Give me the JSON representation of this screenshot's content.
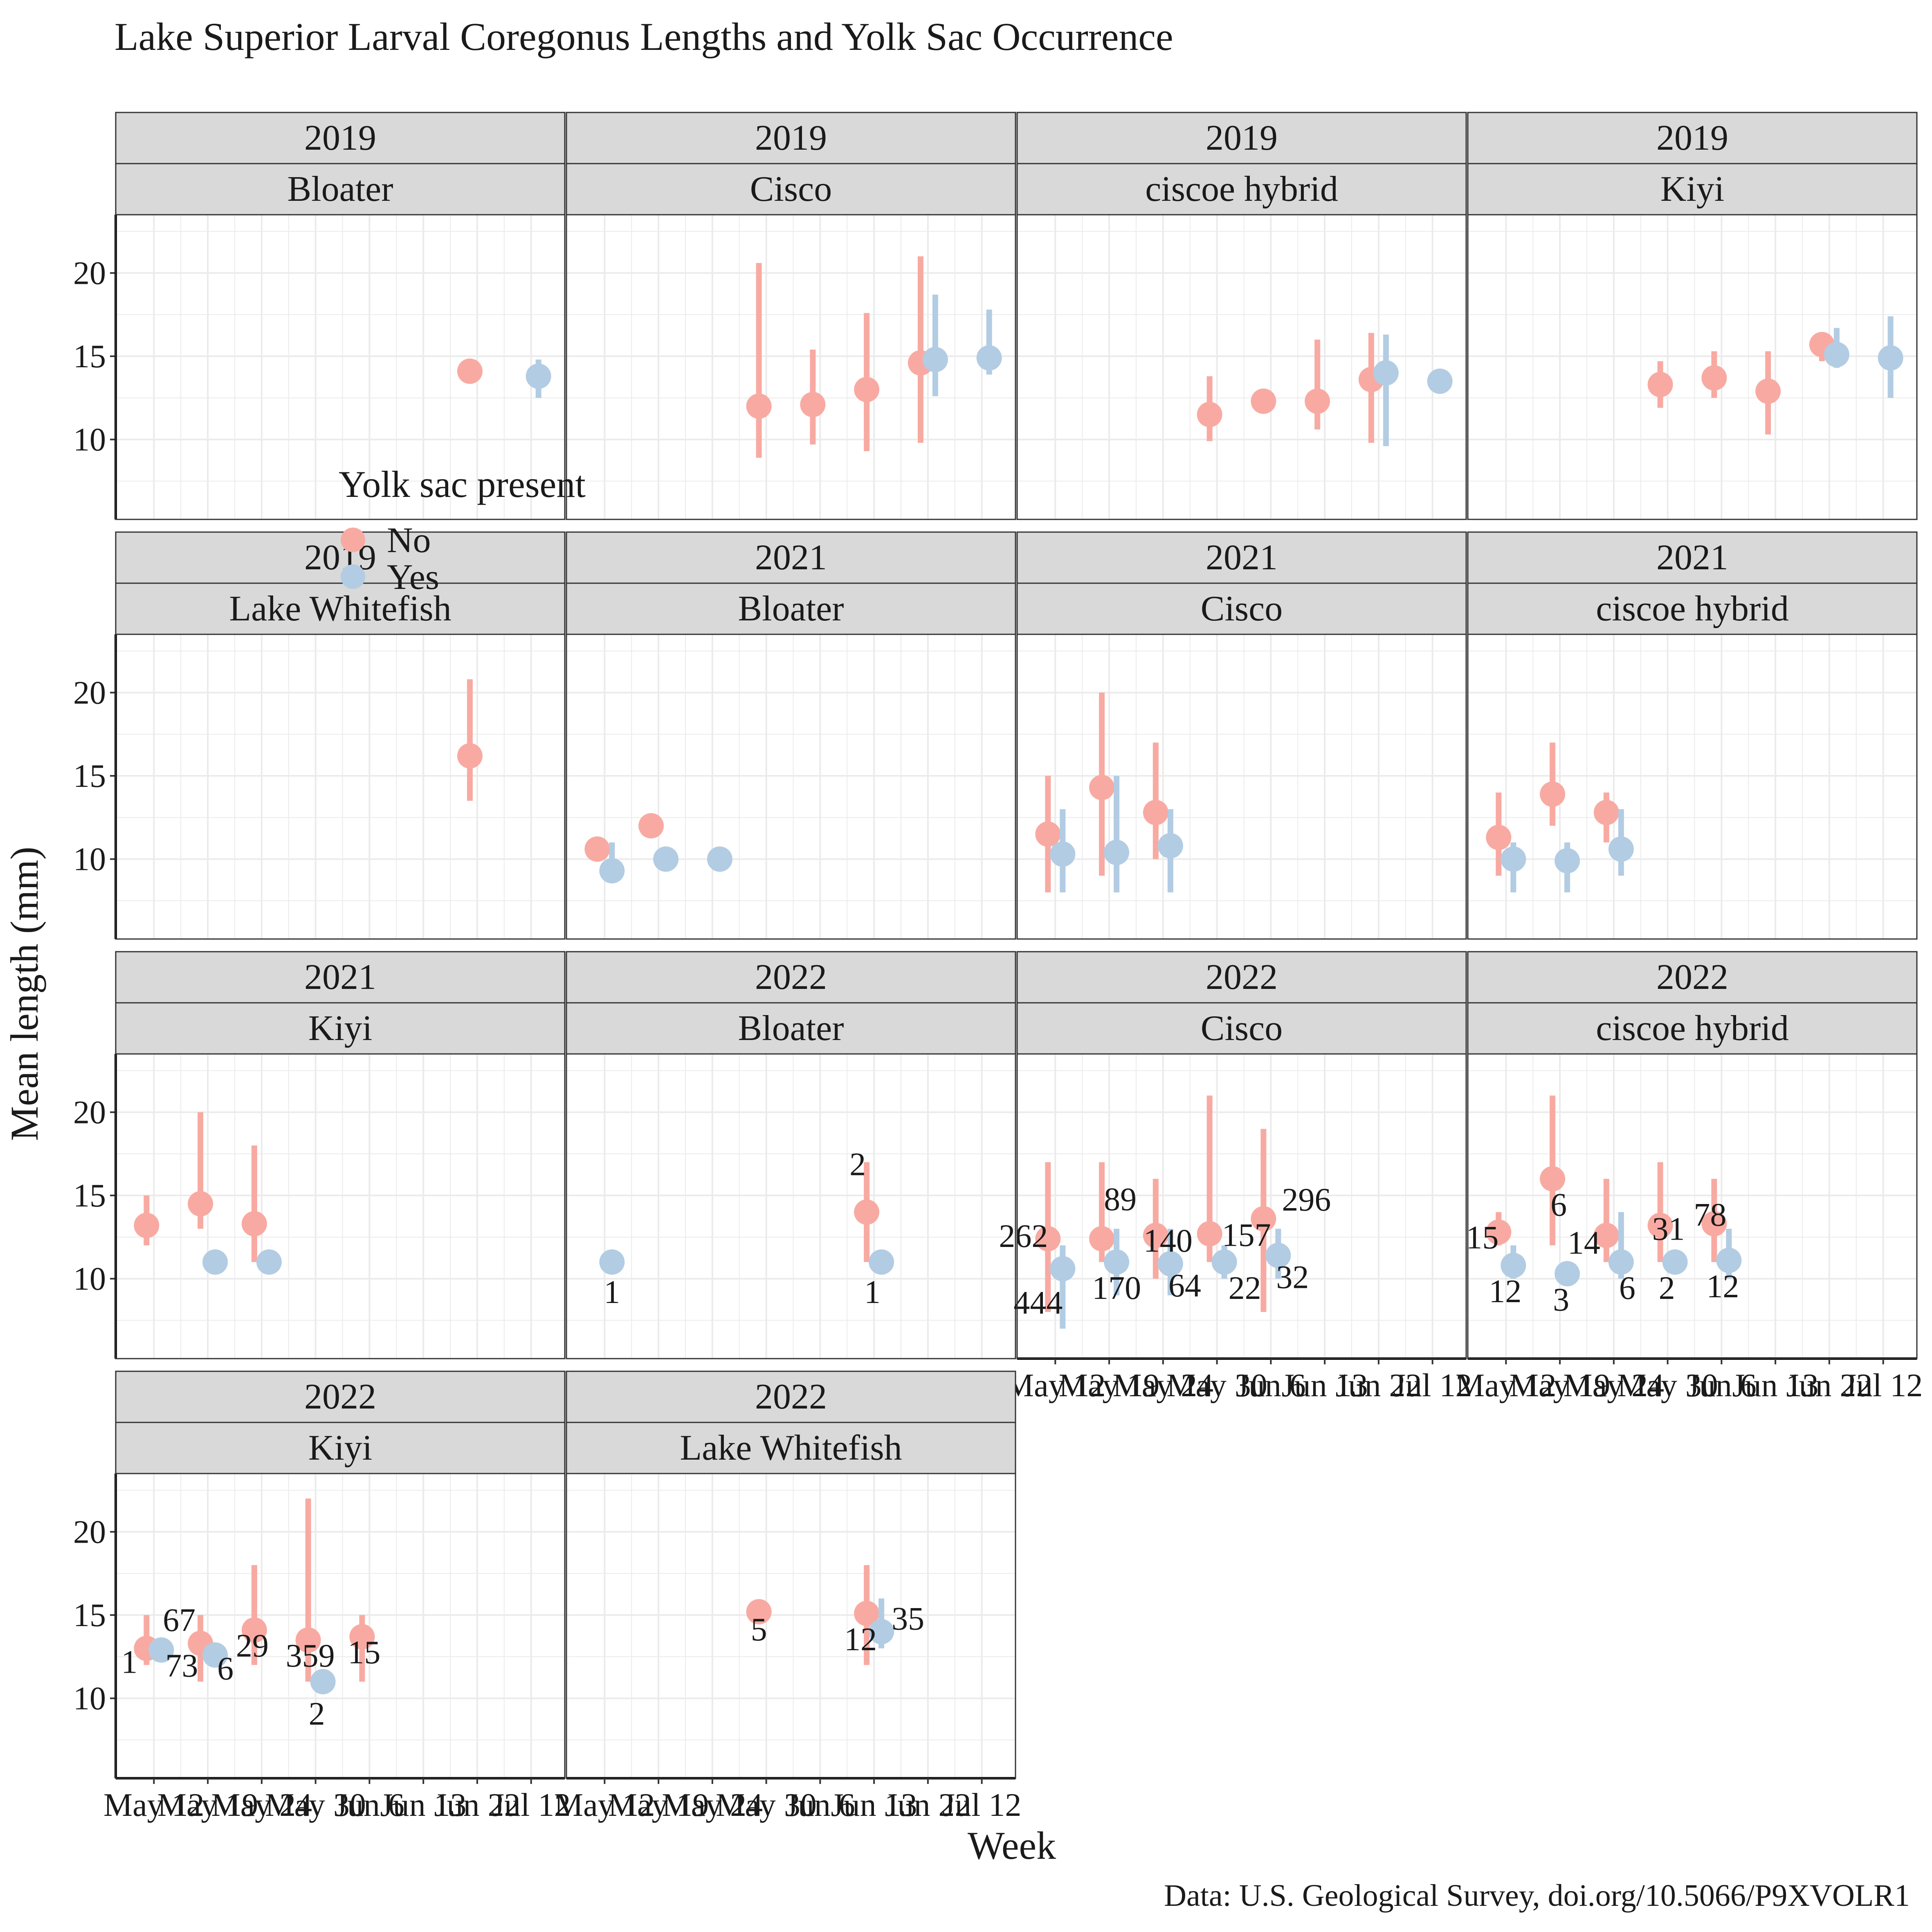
{
  "title": "Lake Superior Larval Coregonus Lengths and Yolk Sac Occurrence",
  "caption": "Data: U.S. Geological Survey, doi.org/10.5066/P9XVOLR1",
  "colors": {
    "No": "#f8aaa2",
    "Yes": "#b2cce3",
    "strip_fill": "#d9d9d9",
    "grid": "#ebebeb"
  },
  "legend": {
    "title": "Yolk sac present",
    "placement": "overlapping the facet grid, left of centre",
    "items": [
      {
        "key": "No",
        "label": "No"
      },
      {
        "key": "Yes",
        "label": "Yes"
      }
    ]
  },
  "chart_data": {
    "type": "scatter",
    "subtype": "point-range, faceted by year and species",
    "title": "Lake Superior Larval Coregonus Lengths and Yolk Sac Occurrence",
    "xlabel": "Week",
    "ylabel": "Mean length (mm)",
    "x_ticks": [
      "May 12",
      "May 19",
      "May 24",
      "May 30",
      "Jun 6",
      "Jun 13",
      "Jun 22",
      "Jul 12"
    ],
    "y_ticks": [
      10,
      15,
      20
    ],
    "ylim": [
      5.2,
      23.5
    ],
    "grid": true,
    "x_axis_shown_on": [
      10,
      11,
      12,
      13
    ],
    "series_names": [
      "No",
      "Yes"
    ],
    "facets": [
      {
        "year": "2019",
        "species": "Bloater",
        "points": [
          {
            "x": "Jun 22",
            "yolk": "No",
            "y": 14.1
          },
          {
            "x": "Jul 12",
            "yolk": "Yes",
            "y": 13.8,
            "ymin": 12.5,
            "ymax": 14.8
          }
        ]
      },
      {
        "year": "2019",
        "species": "Cisco",
        "points": [
          {
            "x": "May 30",
            "yolk": "No",
            "y": 12.0,
            "ymin": 8.9,
            "ymax": 20.6
          },
          {
            "x": "Jun 6",
            "yolk": "No",
            "y": 12.1,
            "ymin": 9.7,
            "ymax": 15.4
          },
          {
            "x": "Jun 13",
            "yolk": "No",
            "y": 13.0,
            "ymin": 9.3,
            "ymax": 17.6
          },
          {
            "x": "Jun 22",
            "yolk": "No",
            "y": 14.6,
            "ymin": 9.8,
            "ymax": 21.0
          },
          {
            "x": "Jun 22",
            "yolk": "Yes",
            "y": 14.8,
            "ymin": 12.6,
            "ymax": 18.7
          },
          {
            "x": "Jul 12",
            "yolk": "Yes",
            "y": 14.9,
            "ymin": 13.9,
            "ymax": 17.8
          }
        ]
      },
      {
        "year": "2019",
        "species": "ciscoe hybrid",
        "points": [
          {
            "x": "May 30",
            "yolk": "No",
            "y": 11.5,
            "ymin": 9.9,
            "ymax": 13.8
          },
          {
            "x": "Jun 6",
            "yolk": "No",
            "y": 12.3
          },
          {
            "x": "Jun 13",
            "yolk": "No",
            "y": 12.3,
            "ymin": 10.6,
            "ymax": 16.0
          },
          {
            "x": "Jun 22",
            "yolk": "No",
            "y": 13.6,
            "ymin": 9.8,
            "ymax": 16.4
          },
          {
            "x": "Jun 22",
            "yolk": "Yes",
            "y": 14.0,
            "ymin": 9.6,
            "ymax": 16.3
          },
          {
            "x": "Jul 12",
            "yolk": "Yes",
            "y": 13.5
          }
        ]
      },
      {
        "year": "2019",
        "species": "Kiyi",
        "points": [
          {
            "x": "May 30",
            "yolk": "No",
            "y": 13.3,
            "ymin": 11.9,
            "ymax": 14.7
          },
          {
            "x": "Jun 6",
            "yolk": "No",
            "y": 13.7,
            "ymin": 12.5,
            "ymax": 15.3
          },
          {
            "x": "Jun 13",
            "yolk": "No",
            "y": 12.9,
            "ymin": 10.3,
            "ymax": 15.3
          },
          {
            "x": "Jun 22",
            "yolk": "No",
            "y": 15.7,
            "ymin": 14.7,
            "ymax": 16.3
          },
          {
            "x": "Jun 22",
            "yolk": "Yes",
            "y": 15.1,
            "ymin": 14.3,
            "ymax": 16.7
          },
          {
            "x": "Jul 12",
            "yolk": "Yes",
            "y": 14.9,
            "ymin": 12.5,
            "ymax": 17.4
          }
        ]
      },
      {
        "year": "2019",
        "species": "Lake Whitefish",
        "points": [
          {
            "x": "Jun 22",
            "yolk": "No",
            "y": 16.2,
            "ymin": 13.5,
            "ymax": 20.8
          }
        ]
      },
      {
        "year": "2021",
        "species": "Bloater",
        "points": [
          {
            "x": "May 12",
            "yolk": "No",
            "y": 10.6
          },
          {
            "x": "May 12",
            "yolk": "Yes",
            "y": 9.3,
            "ymin": 8.6,
            "ymax": 11.0
          },
          {
            "x": "May 19",
            "yolk": "No",
            "y": 12.0
          },
          {
            "x": "May 19",
            "yolk": "Yes",
            "y": 10.0
          },
          {
            "x": "May 24",
            "yolk": "Yes",
            "y": 10.0
          }
        ]
      },
      {
        "year": "2021",
        "species": "Cisco",
        "points": [
          {
            "x": "May 12",
            "yolk": "No",
            "y": 11.5,
            "ymin": 8.0,
            "ymax": 15.0
          },
          {
            "x": "May 12",
            "yolk": "Yes",
            "y": 10.3,
            "ymin": 8.0,
            "ymax": 13.0
          },
          {
            "x": "May 19",
            "yolk": "No",
            "y": 14.3,
            "ymin": 9.0,
            "ymax": 20.0
          },
          {
            "x": "May 19",
            "yolk": "Yes",
            "y": 10.4,
            "ymin": 8.0,
            "ymax": 15.0
          },
          {
            "x": "May 24",
            "yolk": "No",
            "y": 12.8,
            "ymin": 10.0,
            "ymax": 17.0
          },
          {
            "x": "May 24",
            "yolk": "Yes",
            "y": 10.8,
            "ymin": 8.0,
            "ymax": 13.0
          }
        ]
      },
      {
        "year": "2021",
        "species": "ciscoe hybrid",
        "points": [
          {
            "x": "May 12",
            "yolk": "No",
            "y": 11.3,
            "ymin": 9.0,
            "ymax": 14.0
          },
          {
            "x": "May 12",
            "yolk": "Yes",
            "y": 10.0,
            "ymin": 8.0,
            "ymax": 11.0
          },
          {
            "x": "May 19",
            "yolk": "No",
            "y": 13.9,
            "ymin": 12.0,
            "ymax": 17.0
          },
          {
            "x": "May 19",
            "yolk": "Yes",
            "y": 9.9,
            "ymin": 8.0,
            "ymax": 11.0
          },
          {
            "x": "May 24",
            "yolk": "No",
            "y": 12.8,
            "ymin": 11.0,
            "ymax": 14.0
          },
          {
            "x": "May 24",
            "yolk": "Yes",
            "y": 10.6,
            "ymin": 9.0,
            "ymax": 13.0
          }
        ]
      },
      {
        "year": "2021",
        "species": "Kiyi",
        "points": [
          {
            "x": "May 12",
            "yolk": "No",
            "y": 13.2,
            "ymin": 12.0,
            "ymax": 15.0
          },
          {
            "x": "May 19",
            "yolk": "No",
            "y": 14.5,
            "ymin": 13.0,
            "ymax": 20.0
          },
          {
            "x": "May 19",
            "yolk": "Yes",
            "y": 11.0
          },
          {
            "x": "May 24",
            "yolk": "No",
            "y": 13.3,
            "ymin": 11.0,
            "ymax": 18.0
          },
          {
            "x": "May 24",
            "yolk": "Yes",
            "y": 11.0
          }
        ]
      },
      {
        "year": "2022",
        "species": "Bloater",
        "points": [
          {
            "x": "May 12",
            "yolk": "Yes",
            "y": 11.0,
            "n": "1"
          },
          {
            "x": "Jun 13",
            "yolk": "No",
            "y": 14.0,
            "ymin": 11.0,
            "ymax": 17.0,
            "n": "2"
          },
          {
            "x": "Jun 13",
            "yolk": "Yes",
            "y": 11.0,
            "n": "1"
          }
        ]
      },
      {
        "year": "2022",
        "species": "Cisco",
        "points": [
          {
            "x": "May 12",
            "yolk": "No",
            "y": 12.4,
            "ymin": 8.0,
            "ymax": 17.0,
            "n": "262"
          },
          {
            "x": "May 12",
            "yolk": "Yes",
            "y": 10.6,
            "ymin": 7.0,
            "ymax": 12.0,
            "n": "444"
          },
          {
            "x": "May 19",
            "yolk": "No",
            "y": 12.4,
            "ymin": 11.0,
            "ymax": 17.0,
            "n": "89"
          },
          {
            "x": "May 19",
            "yolk": "Yes",
            "y": 11.0,
            "ymin": 9.0,
            "ymax": 13.0,
            "n": "170"
          },
          {
            "x": "May 24",
            "yolk": "No",
            "y": 12.6,
            "ymin": 10.0,
            "ymax": 16.0,
            "n": "140"
          },
          {
            "x": "May 24",
            "yolk": "Yes",
            "y": 10.9,
            "ymin": 9.0,
            "ymax": 13.0,
            "n": "64"
          },
          {
            "x": "May 30",
            "yolk": "No",
            "y": 12.7,
            "ymin": 11.0,
            "ymax": 21.0,
            "n": "157"
          },
          {
            "x": "May 30",
            "yolk": "Yes",
            "y": 11.0,
            "ymin": 10.0,
            "ymax": 12.0,
            "n": "22"
          },
          {
            "x": "Jun 6",
            "yolk": "No",
            "y": 13.6,
            "ymin": 8.0,
            "ymax": 19.0,
            "n": "296"
          },
          {
            "x": "Jun 6",
            "yolk": "Yes",
            "y": 11.4,
            "ymin": 10.0,
            "ymax": 13.0,
            "n": "32"
          }
        ]
      },
      {
        "year": "2022",
        "species": "ciscoe hybrid",
        "points": [
          {
            "x": "May 12",
            "yolk": "No",
            "y": 12.8,
            "ymin": 12.0,
            "ymax": 14.0,
            "n": "15"
          },
          {
            "x": "May 12",
            "yolk": "Yes",
            "y": 10.8,
            "ymin": 10.0,
            "ymax": 12.0,
            "n": "12"
          },
          {
            "x": "May 19",
            "yolk": "No",
            "y": 16.0,
            "ymin": 12.0,
            "ymax": 21.0,
            "n": "6"
          },
          {
            "x": "May 19",
            "yolk": "Yes",
            "y": 10.3,
            "n": "3"
          },
          {
            "x": "May 24",
            "yolk": "No",
            "y": 12.6,
            "ymin": 11.0,
            "ymax": 16.0,
            "n": "14"
          },
          {
            "x": "May 24",
            "yolk": "Yes",
            "y": 11.0,
            "ymin": 10.0,
            "ymax": 14.0,
            "n": "6"
          },
          {
            "x": "May 30",
            "yolk": "No",
            "y": 13.2,
            "ymin": 11.0,
            "ymax": 17.0,
            "n": "31"
          },
          {
            "x": "May 30",
            "yolk": "Yes",
            "y": 11.0,
            "n": "2"
          },
          {
            "x": "Jun 6",
            "yolk": "No",
            "y": 13.3,
            "ymin": 11.0,
            "ymax": 16.0,
            "n": "78"
          },
          {
            "x": "Jun 6",
            "yolk": "Yes",
            "y": 11.1,
            "ymin": 10.0,
            "ymax": 13.0,
            "n": "12"
          }
        ]
      },
      {
        "year": "2022",
        "species": "Kiyi",
        "points": [
          {
            "x": "May 12",
            "yolk": "No",
            "y": 13.0,
            "ymin": 12.0,
            "ymax": 15.0,
            "n": "1"
          },
          {
            "x": "May 12",
            "yolk": "Yes",
            "y": 12.9,
            "n": "73"
          },
          {
            "x": "May 19",
            "yolk": "No",
            "y": 13.3,
            "ymin": 11.0,
            "ymax": 15.0,
            "n": "67"
          },
          {
            "x": "May 19",
            "yolk": "Yes",
            "y": 12.6,
            "n": "6"
          },
          {
            "x": "May 24",
            "yolk": "No",
            "y": 14.1,
            "ymin": 12.0,
            "ymax": 18.0,
            "n": "29"
          },
          {
            "x": "May 30",
            "yolk": "No",
            "y": 13.5,
            "ymin": 11.0,
            "ymax": 22.0,
            "n": "359"
          },
          {
            "x": "May 30",
            "yolk": "Yes",
            "y": 11.0,
            "n": "2"
          },
          {
            "x": "Jun 6",
            "yolk": "No",
            "y": 13.7,
            "ymin": 11.0,
            "ymax": 15.0,
            "n": "15"
          }
        ]
      },
      {
        "year": "2022",
        "species": "Lake Whitefish",
        "points": [
          {
            "x": "May 30",
            "yolk": "No",
            "y": 15.2,
            "ymin": 14.5,
            "ymax": 15.8,
            "n": "5"
          },
          {
            "x": "Jun 13",
            "yolk": "No",
            "y": 15.1,
            "ymin": 12.0,
            "ymax": 18.0,
            "n": "12"
          },
          {
            "x": "Jun 13",
            "yolk": "Yes",
            "y": 14.0,
            "ymin": 13.0,
            "ymax": 16.0,
            "n": "35"
          }
        ]
      }
    ]
  }
}
